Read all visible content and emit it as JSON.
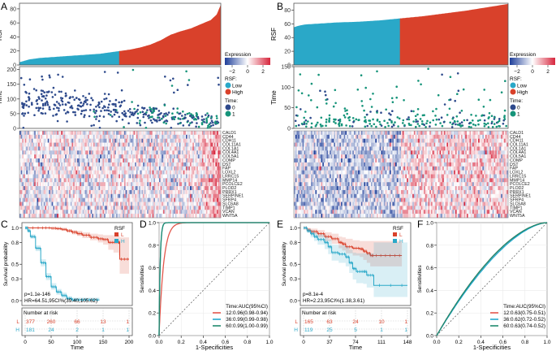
{
  "figure": {
    "colors": {
      "low": "#2aa8c8",
      "high": "#d9412b",
      "time0": "#2e4a8c",
      "time1": "#16947a",
      "expr_low": "#1f3f9a",
      "expr_mid": "#ffffff",
      "expr_high": "#d7263d",
      "roc12": "#e2574c",
      "roc36": "#24a9cf",
      "roc60": "#1f8a6e",
      "grid": "#e6e6e6",
      "diag": "#555555"
    },
    "genes": [
      "CALD1",
      "CD44",
      "CDH11",
      "COL11A1",
      "COL1A1",
      "COL4A1",
      "COL5A1",
      "COMP",
      "DST",
      "FAP",
      "LOXL2",
      "LRRC15",
      "MMP14",
      "PCOLCE2",
      "PLOD2",
      "PRRX1",
      "SERPINE1",
      "SFRP4",
      "SLC6A8",
      "TIMP1",
      "VCAN",
      "WNT5A"
    ],
    "legend": {
      "expression_title": "Expression",
      "expression_ticks": [
        "−2",
        "0",
        "2"
      ],
      "expression_range": [
        -3,
        3
      ],
      "rsf_title": "RSF:",
      "rsf_items": [
        "Low",
        "High"
      ],
      "time_title": "Time:",
      "time_items": [
        "0",
        "1"
      ]
    }
  },
  "chart_data": [
    {
      "panel": "A",
      "type": "area",
      "title": "",
      "ylabel": "RSF",
      "ylim": [
        0,
        88
      ],
      "yticks": [
        0,
        20,
        40,
        60,
        80
      ],
      "n_samples": 558,
      "low_fraction": 0.5,
      "curve_quantiles": [
        0,
        0.05,
        0.1,
        0.2,
        0.3,
        0.4,
        0.5,
        0.55,
        0.6,
        0.65,
        0.7,
        0.75,
        0.8,
        0.85,
        0.9,
        0.95,
        0.98,
        1.0
      ],
      "curve_values": [
        4,
        8,
        10,
        12,
        14,
        16,
        20,
        22,
        25,
        29,
        35,
        43,
        48,
        52,
        58,
        64,
        72,
        86
      ],
      "groups": [
        "Low",
        "High"
      ]
    },
    {
      "panel": "A-scatter",
      "type": "scatter",
      "ylabel": "Time",
      "ylim": [
        0,
        210
      ],
      "yticks": [
        0,
        50,
        100,
        150,
        200
      ],
      "n_points": 420,
      "trend": "time decreases with RSF rank; status 1 concentrated among high-RSF samples"
    },
    {
      "panel": "A-heatmap",
      "type": "heatmap",
      "rows": "figure.genes",
      "colorbar": "Expression",
      "range": [
        -3,
        3
      ],
      "pattern": "mostly neutral with mixed blue/red; increased red in highest-RSF columns"
    },
    {
      "panel": "B",
      "type": "area",
      "ylabel": "RSF",
      "ylim": [
        0,
        90
      ],
      "yticks": [
        0,
        20,
        40,
        60,
        80
      ],
      "n_samples": 284,
      "low_fraction": 0.5,
      "curve_quantiles": [
        0,
        0.02,
        0.05,
        0.1,
        0.2,
        0.3,
        0.4,
        0.5,
        0.6,
        0.7,
        0.8,
        0.9,
        1.0
      ],
      "curve_values": [
        55,
        57,
        59,
        60,
        62,
        63,
        65,
        68,
        71,
        75,
        79,
        84,
        89
      ],
      "groups": [
        "Low",
        "High"
      ]
    },
    {
      "panel": "B-scatter",
      "type": "scatter",
      "ylabel": "Time",
      "ylim": [
        0,
        150
      ],
      "yticks": [
        0,
        50,
        100,
        150
      ],
      "n_points": 280,
      "trend": "mostly status 1 with short times spread across RSF rank"
    },
    {
      "panel": "B-heatmap",
      "type": "heatmap",
      "rows": "figure.genes",
      "colorbar": "Expression",
      "range": [
        -3,
        3
      ],
      "pattern": "blue-dominant in low-RSF half, red-dominant in high-RSF half"
    },
    {
      "panel": "C",
      "type": "line",
      "subtype": "kaplan-meier",
      "ylabel": "Survival probability",
      "xlabel": "Time",
      "xlim": [
        0,
        200
      ],
      "ylim": [
        0,
        1.05
      ],
      "xticks": [
        0,
        50,
        100,
        150,
        200
      ],
      "yticks": [
        0.0,
        0.3,
        0.5,
        0.8,
        1.0
      ],
      "legend_title": "RSF",
      "legend_position": "top-right",
      "series": [
        {
          "name": "L",
          "color_key": "high",
          "x": [
            0,
            30,
            50,
            60,
            70,
            80,
            90,
            100,
            110,
            125,
            140,
            150,
            160,
            170,
            180,
            182,
            200
          ],
          "y": [
            1.0,
            1.0,
            0.995,
            0.99,
            0.98,
            0.96,
            0.94,
            0.92,
            0.9,
            0.87,
            0.85,
            0.84,
            0.8,
            0.8,
            0.8,
            0.57,
            0.57
          ],
          "ci_low": [
            1.0,
            1.0,
            0.99,
            0.98,
            0.96,
            0.94,
            0.91,
            0.89,
            0.86,
            0.83,
            0.8,
            0.77,
            0.7,
            0.66,
            0.62,
            0.37,
            0.37
          ],
          "ci_high": [
            1.0,
            1.0,
            1.0,
            1.0,
            0.99,
            0.98,
            0.97,
            0.96,
            0.94,
            0.92,
            0.91,
            0.9,
            0.9,
            0.9,
            0.9,
            0.87,
            0.87
          ]
        },
        {
          "name": "H",
          "color_key": "low",
          "x": [
            0,
            5,
            10,
            20,
            30,
            40,
            50,
            60,
            70,
            80,
            90,
            100,
            120,
            143
          ],
          "y": [
            1.0,
            0.96,
            0.88,
            0.72,
            0.52,
            0.33,
            0.19,
            0.12,
            0.07,
            0.03,
            0.01,
            0.01,
            0.01,
            0.01
          ],
          "ci_low": [
            1.0,
            0.94,
            0.85,
            0.68,
            0.47,
            0.28,
            0.15,
            0.08,
            0.04,
            0.01,
            0.0,
            0.0,
            0.0,
            0.0
          ],
          "ci_high": [
            1.0,
            0.98,
            0.91,
            0.76,
            0.57,
            0.38,
            0.24,
            0.16,
            0.11,
            0.06,
            0.04,
            0.04,
            0.04,
            0.04
          ]
        }
      ],
      "annotations": [
        "p=1.1e-146",
        "HR=64.51,95CI%(39.40,105.62)"
      ],
      "risk_table": {
        "title": "Number at risk",
        "times": [
          0,
          50,
          100,
          150,
          200
        ],
        "rows": [
          {
            "name": "L",
            "values": [
              377,
              260,
              66,
              13,
              1
            ]
          },
          {
            "name": "H",
            "values": [
              181,
              24,
              2,
              1,
              1
            ]
          }
        ]
      }
    },
    {
      "panel": "D",
      "type": "line",
      "subtype": "roc",
      "xlabel": "1-Specificities",
      "ylabel": "Sensitivities",
      "xlim": [
        0,
        1
      ],
      "ylim": [
        0,
        1
      ],
      "xticks": [
        0.0,
        0.2,
        0.4,
        0.6,
        0.8,
        1.0
      ],
      "yticks": [
        0.0,
        0.2,
        0.4,
        0.6,
        0.8,
        1.0
      ],
      "legend_title": "Time:AUC(95%CI)",
      "legend_position": "bottom-right",
      "series": [
        {
          "name": "12:0.96(0.98-0.94)",
          "color_key": "roc12",
          "auc": 0.96
        },
        {
          "name": "36:0.99(0.99-0.98)",
          "color_key": "roc36",
          "auc": 0.99
        },
        {
          "name": "60:0.99(1.00-0.99)",
          "color_key": "roc60",
          "auc": 0.99
        }
      ]
    },
    {
      "panel": "E",
      "type": "line",
      "subtype": "kaplan-meier",
      "ylabel": "Survival probability",
      "xlabel": "Time",
      "xlim": [
        0,
        148
      ],
      "ylim": [
        0,
        1.05
      ],
      "xticks": [
        0,
        37,
        74,
        111,
        148
      ],
      "yticks": [
        0.0,
        0.3,
        0.5,
        0.8,
        1.0
      ],
      "legend_title": "RSF",
      "legend_position": "top-right",
      "series": [
        {
          "name": "L",
          "color_key": "high",
          "x": [
            0,
            5,
            10,
            20,
            30,
            40,
            50,
            55,
            60,
            70,
            80,
            85,
            90,
            95,
            100,
            120,
            140
          ],
          "y": [
            1.0,
            0.97,
            0.95,
            0.92,
            0.88,
            0.85,
            0.8,
            0.78,
            0.74,
            0.72,
            0.71,
            0.68,
            0.65,
            0.62,
            0.62,
            0.62,
            0.62
          ],
          "ci_low": [
            1.0,
            0.94,
            0.91,
            0.87,
            0.82,
            0.78,
            0.72,
            0.69,
            0.65,
            0.62,
            0.6,
            0.56,
            0.52,
            0.47,
            0.47,
            0.47,
            0.47
          ],
          "ci_high": [
            1.0,
            1.0,
            0.99,
            0.97,
            0.94,
            0.92,
            0.88,
            0.87,
            0.85,
            0.83,
            0.82,
            0.82,
            0.82,
            0.82,
            0.82,
            0.82,
            0.82
          ]
        },
        {
          "name": "H",
          "color_key": "low",
          "x": [
            0,
            5,
            10,
            15,
            20,
            30,
            35,
            40,
            50,
            60,
            65,
            70,
            75,
            85,
            90,
            100,
            148
          ],
          "y": [
            1.0,
            0.96,
            0.92,
            0.88,
            0.84,
            0.8,
            0.74,
            0.66,
            0.64,
            0.6,
            0.52,
            0.44,
            0.4,
            0.4,
            0.35,
            0.21,
            0.21
          ],
          "ci_low": [
            1.0,
            0.93,
            0.87,
            0.82,
            0.77,
            0.71,
            0.64,
            0.55,
            0.52,
            0.47,
            0.38,
            0.29,
            0.24,
            0.23,
            0.18,
            0.05,
            0.05
          ],
          "ci_high": [
            1.0,
            0.99,
            0.97,
            0.94,
            0.91,
            0.88,
            0.84,
            0.77,
            0.76,
            0.74,
            0.7,
            0.66,
            0.65,
            0.65,
            0.65,
            0.8,
            0.8
          ]
        }
      ],
      "annotations": [
        "p=8.1e-4",
        "HR=2.23,95CI%(1.38,3.61)"
      ],
      "risk_table": {
        "title": "Number at risk",
        "times": [
          0,
          37,
          74,
          111,
          148
        ],
        "rows": [
          {
            "name": "L",
            "values": [
              165,
              63,
              24,
              10,
              1
            ]
          },
          {
            "name": "H",
            "values": [
              119,
              25,
              5,
              1,
              1
            ]
          }
        ]
      }
    },
    {
      "panel": "F",
      "type": "line",
      "subtype": "roc",
      "xlabel": "1-Specificities",
      "ylabel": "Sensitivities",
      "xlim": [
        0,
        1
      ],
      "ylim": [
        0,
        1
      ],
      "xticks": [
        0.0,
        0.2,
        0.4,
        0.6,
        0.8,
        1.0
      ],
      "yticks": [
        0.0,
        0.2,
        0.4,
        0.6,
        0.8,
        1.0
      ],
      "legend_title": "Time:AUC(95%CI)",
      "legend_position": "bottom-right",
      "series": [
        {
          "name": "12:0.63(0.75-0.51)",
          "color_key": "roc12",
          "auc": 0.63
        },
        {
          "name": "36:0.62(0.72-0.52)",
          "color_key": "roc36",
          "auc": 0.62
        },
        {
          "name": "60:0.63(0.74-0.52)",
          "color_key": "roc60",
          "auc": 0.63
        }
      ]
    }
  ]
}
